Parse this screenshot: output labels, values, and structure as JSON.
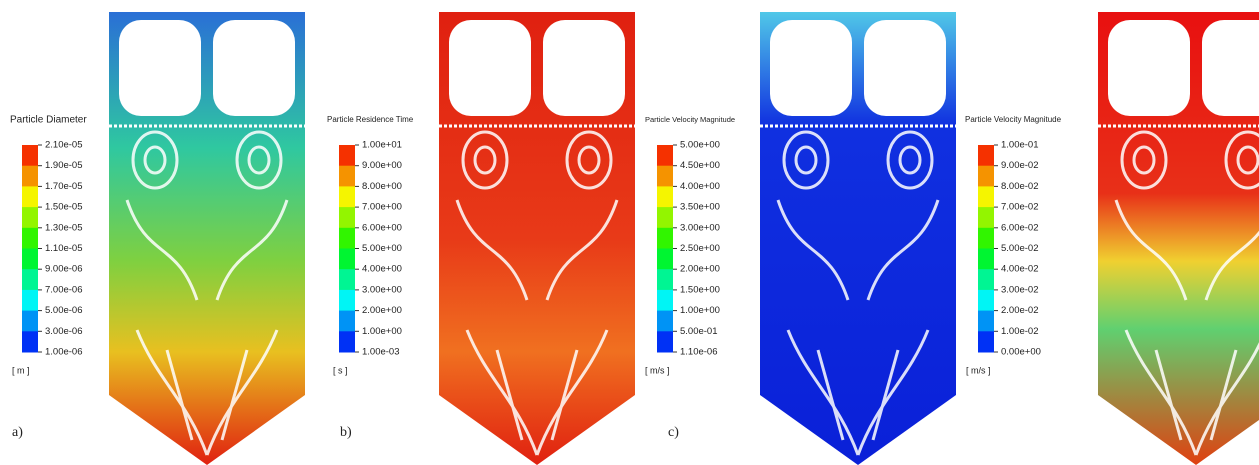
{
  "panels": [
    {
      "letter": "a)",
      "legend": {
        "title": "Particle Diameter",
        "unit": "[ m ]",
        "ticks": [
          "2.10e-05",
          "1.90e-05",
          "1.70e-05",
          "1.50e-05",
          "1.30e-05",
          "1.10e-05",
          "9.00e-06",
          "7.00e-06",
          "5.00e-06",
          "3.00e-06",
          "1.00e-06"
        ]
      }
    },
    {
      "letter": "b)",
      "legend": {
        "title": "Particle Residence Time",
        "unit": "[ s ]",
        "ticks": [
          "1.00e+01",
          "9.00e+00",
          "8.00e+00",
          "7.00e+00",
          "6.00e+00",
          "5.00e+00",
          "4.00e+00",
          "3.00e+00",
          "2.00e+00",
          "1.00e+00",
          "1.00e-03"
        ]
      }
    },
    {
      "letter": "c)",
      "legend": {
        "title": "Particle Velocity Magnitude",
        "unit": "[ m/s ]",
        "ticks": [
          "5.00e+00",
          "4.50e+00",
          "4.00e+00",
          "3.50e+00",
          "3.00e+00",
          "2.50e+00",
          "2.00e+00",
          "1.50e+00",
          "1.00e+00",
          "5.00e-01",
          "1.10e-06"
        ]
      }
    },
    {
      "legend": {
        "title": "Particle Velocity Magnitude",
        "unit": "[ m/s ]",
        "ticks": [
          "1.00e-01",
          "9.00e-02",
          "8.00e-02",
          "7.00e-02",
          "6.00e-02",
          "5.00e-02",
          "4.00e-02",
          "3.00e-02",
          "2.00e-02",
          "1.00e-02",
          "0.00e+00"
        ]
      }
    }
  ]
}
